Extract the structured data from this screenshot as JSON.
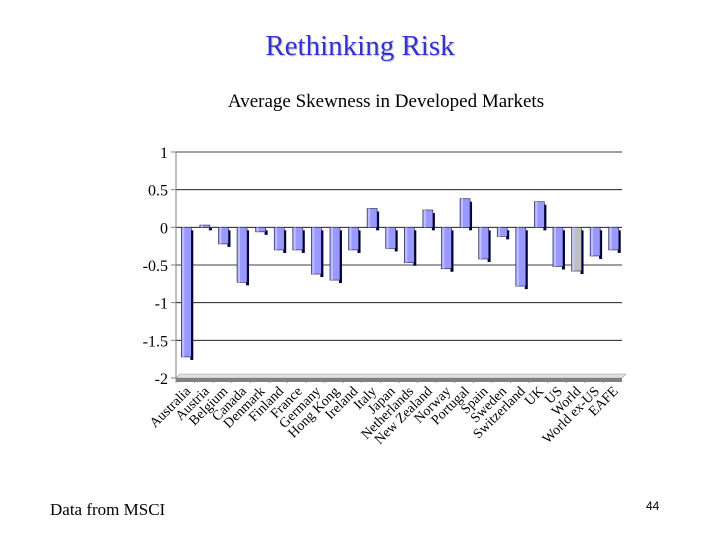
{
  "slide": {
    "title": "Rethinking Risk",
    "source": "Data from MSCI",
    "page_number": "44"
  },
  "colors": {
    "title": "#3333cc",
    "bar": "#9999ff",
    "bar_highlight": "#c8c8ff",
    "bar_special": "#c0c0c0",
    "bar_shadow": "#00003a",
    "gridline": "#000000",
    "axis": "#808080"
  },
  "chart_data": {
    "type": "bar",
    "title": "Average Skewness in Developed Markets",
    "xlabel": "",
    "ylabel": "",
    "ylim": [
      -2,
      1
    ],
    "yticks": [
      "1",
      "0.5",
      "0",
      "-0.5",
      "-1",
      "-1.5",
      "-2"
    ],
    "ytick_values": [
      1,
      0.5,
      0,
      -0.5,
      -1,
      -1.5,
      -2
    ],
    "gridlines": true,
    "categories": [
      "Australia",
      "Austria",
      "Belgium",
      "Canada",
      "Denmark",
      "Finland",
      "France",
      "Germany",
      "Hong Kong",
      "Ireland",
      "Italy",
      "Japan",
      "Netherlands",
      "New Zealand",
      "Norway",
      "Portugal",
      "Spain",
      "Sweden",
      "Switzerland",
      "UK",
      "US",
      "World",
      "World ex-US",
      "EAFE"
    ],
    "values": [
      -1.72,
      0.03,
      -0.22,
      -0.73,
      -0.06,
      -0.3,
      -0.3,
      -0.62,
      -0.7,
      -0.3,
      0.25,
      -0.28,
      -0.47,
      0.23,
      -0.55,
      0.38,
      -0.42,
      -0.12,
      -0.78,
      0.34,
      -0.52,
      -0.58,
      -0.38,
      -0.3
    ],
    "special_index": 21
  }
}
